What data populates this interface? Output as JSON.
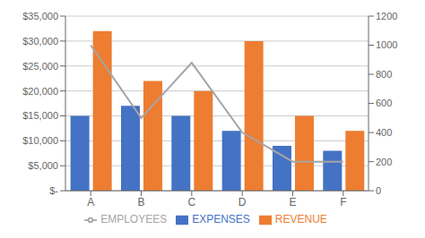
{
  "chart_data": {
    "type": "bar",
    "categories": [
      "A",
      "B",
      "C",
      "D",
      "E",
      "F"
    ],
    "series": [
      {
        "name": "EXPENSES",
        "type": "bar",
        "color": "#4472C4",
        "values": [
          15000,
          17000,
          15000,
          12000,
          9000,
          8000
        ]
      },
      {
        "name": "REVENUE",
        "type": "bar",
        "color": "#ED7D31",
        "values": [
          32000,
          22000,
          20000,
          30000,
          15000,
          12000
        ]
      },
      {
        "name": "EMPLOYEES",
        "type": "line",
        "color": "#A5A5A5",
        "axis": "y2",
        "values": [
          1000,
          500,
          880,
          400,
          200,
          200
        ]
      }
    ],
    "ylim": [
      0,
      35000
    ],
    "yticks": [
      {
        "value": 0,
        "label": "$-"
      },
      {
        "value": 5000,
        "label": "$5,000"
      },
      {
        "value": 10000,
        "label": "$10,000"
      },
      {
        "value": 15000,
        "label": "$15,000"
      },
      {
        "value": 20000,
        "label": "$20,000"
      },
      {
        "value": 25000,
        "label": "$25,000"
      },
      {
        "value": 30000,
        "label": "$30,000"
      },
      {
        "value": 35000,
        "label": "$35,000"
      }
    ],
    "y2lim": [
      0,
      1200
    ],
    "y2ticks": [
      0,
      200,
      400,
      600,
      800,
      1000,
      1200
    ],
    "grid": true,
    "legend": "bottom"
  }
}
